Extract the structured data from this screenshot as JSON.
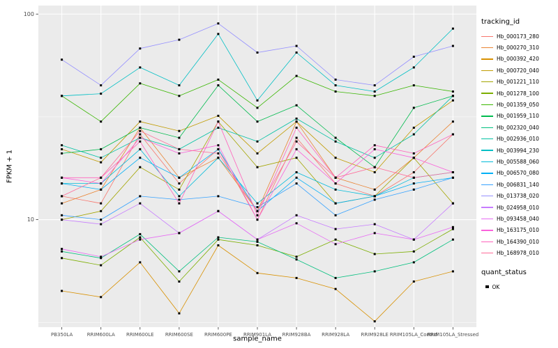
{
  "chart_data": {
    "type": "line",
    "title": "",
    "xlabel": "sample_name",
    "ylabel": "FPKM + 1",
    "y_scale": "log10",
    "ylim": [
      3,
      110
    ],
    "y_major_ticks": [
      10,
      100
    ],
    "y_minor_ticks": [
      3.162,
      31.62
    ],
    "grid": true,
    "panel_bg": "#EBEBEB",
    "grid_color": "#FFFFFF",
    "tick_color": "#333333",
    "tick_label_color": "#4D4D4D",
    "point_color": "#000000",
    "legend_position": "right",
    "legend_title": "tracking_id",
    "legend2_title": "quant_status",
    "legend2_items": [
      {
        "label": "OK"
      }
    ],
    "categories": [
      "PB350LA",
      "RRIM600LA",
      "RRIM600LE",
      "RRIM600SE",
      "RRIM600PE",
      "RRIM901LA",
      "RRIM928BA",
      "RRIM928LA",
      "RRIM928LE",
      "RRIM105LA_Control",
      "RRIM105LA_Stressed"
    ],
    "series": [
      {
        "name": "Hb_000173_280",
        "color": "#F8766D",
        "values": [
          13,
          12,
          26,
          15,
          22,
          10,
          25,
          15,
          13,
          17,
          26
        ]
      },
      {
        "name": "Hb_000270_310",
        "color": "#EA8331",
        "values": [
          12,
          14,
          28,
          16,
          20,
          11,
          30,
          16,
          14,
          20,
          30
        ]
      },
      {
        "name": "Hb_000392_420",
        "color": "#D89000",
        "values": [
          4.5,
          4.2,
          6.2,
          3.5,
          7.5,
          5.5,
          5.2,
          4.6,
          3.2,
          5.0,
          5.6
        ]
      },
      {
        "name": "Hb_000720_040",
        "color": "#C09B00",
        "values": [
          22,
          19,
          30,
          27,
          32,
          21,
          30,
          20,
          17,
          28,
          38
        ]
      },
      {
        "name": "Hb_001221_110",
        "color": "#A3A500",
        "values": [
          10,
          11,
          18,
          14,
          30,
          18,
          20,
          12,
          13,
          20,
          12
        ]
      },
      {
        "name": "Hb_001278_100",
        "color": "#7CAE00",
        "values": [
          6.5,
          6.0,
          8.2,
          5.0,
          8.0,
          7.5,
          6.6,
          8.0,
          6.8,
          7.0,
          9.0
        ]
      },
      {
        "name": "Hb_001359_050",
        "color": "#39B600",
        "values": [
          40,
          30,
          46,
          40,
          48,
          35,
          50,
          42,
          40,
          45,
          42
        ]
      },
      {
        "name": "Hb_001959_110",
        "color": "#00BB4E",
        "values": [
          21,
          22,
          28,
          25,
          45,
          30,
          36,
          25,
          18,
          35,
          40
        ]
      },
      {
        "name": "Hb_002320_040",
        "color": "#00BF7D",
        "values": [
          7.0,
          6.5,
          8.5,
          5.6,
          8.2,
          7.8,
          6.4,
          5.2,
          5.6,
          6.2,
          8.0
        ]
      },
      {
        "name": "Hb_002936_010",
        "color": "#00C1A3",
        "values": [
          23,
          20,
          25,
          22,
          28,
          24,
          31,
          24,
          20,
          26,
          40
        ]
      },
      {
        "name": "Hb_003994_230",
        "color": "#00BFC4",
        "values": [
          40,
          41,
          55,
          45,
          80,
          38,
          65,
          45,
          42,
          55,
          85
        ]
      },
      {
        "name": "Hb_005588_060",
        "color": "#00BBDA",
        "values": [
          15,
          15,
          22,
          13,
          20,
          12,
          17,
          14,
          13,
          16,
          17
        ]
      },
      {
        "name": "Hb_006570_080",
        "color": "#00B0F6",
        "values": [
          15,
          14,
          20,
          16,
          22,
          11,
          16,
          12,
          13,
          15,
          16
        ]
      },
      {
        "name": "Hb_006831_140",
        "color": "#35A2FF",
        "values": [
          10.5,
          10,
          13,
          12.5,
          13,
          11.5,
          15,
          10.5,
          12.5,
          14,
          16
        ]
      },
      {
        "name": "Hb_013738_020",
        "color": "#9590FF",
        "values": [
          60,
          45,
          68,
          75,
          90,
          65,
          70,
          48,
          45,
          62,
          70
        ]
      },
      {
        "name": "Hb_024958_010",
        "color": "#C77CFF",
        "values": [
          10,
          9.5,
          12,
          8.6,
          11,
          8.0,
          10.5,
          9.0,
          9.5,
          8.0,
          12
        ]
      },
      {
        "name": "Hb_093458_040",
        "color": "#E76BF3",
        "values": [
          7.2,
          6.6,
          8.0,
          8.6,
          11,
          8.0,
          9.6,
          7.6,
          8.6,
          8.0,
          9.2
        ]
      },
      {
        "name": "Hb_163175_010",
        "color": "#FA62DB",
        "values": [
          16,
          15,
          25,
          21,
          23,
          10,
          22,
          15,
          22,
          20,
          17
        ]
      },
      {
        "name": "Hb_164390_010",
        "color": "#FF62BC",
        "values": [
          16,
          16,
          24,
          12,
          30,
          10.5,
          28,
          16,
          23,
          21,
          26
        ]
      },
      {
        "name": "Hb_168978_010",
        "color": "#FF6A98",
        "values": [
          13,
          16,
          27,
          22,
          21,
          11,
          24,
          16,
          18,
          16,
          17
        ]
      }
    ]
  }
}
